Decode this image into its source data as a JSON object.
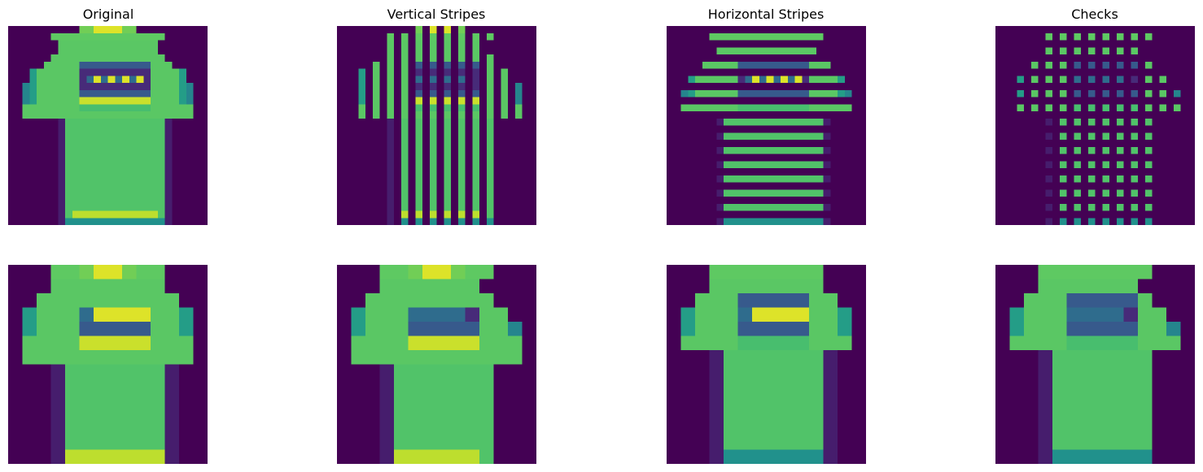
{
  "figure": {
    "titles": [
      "Original",
      "Vertical Stripes",
      "Horizontal Stripes",
      "Checks"
    ]
  },
  "colormap": {
    "name": "viridis",
    "stops": [
      "#440154",
      "#472d7b",
      "#3b528b",
      "#2c728e",
      "#21918c",
      "#28ae80",
      "#5ec962",
      "#addc30",
      "#fde725"
    ]
  },
  "images": {
    "top_row_grid": "28x28",
    "bottom_row_grid": "14x14"
  }
}
